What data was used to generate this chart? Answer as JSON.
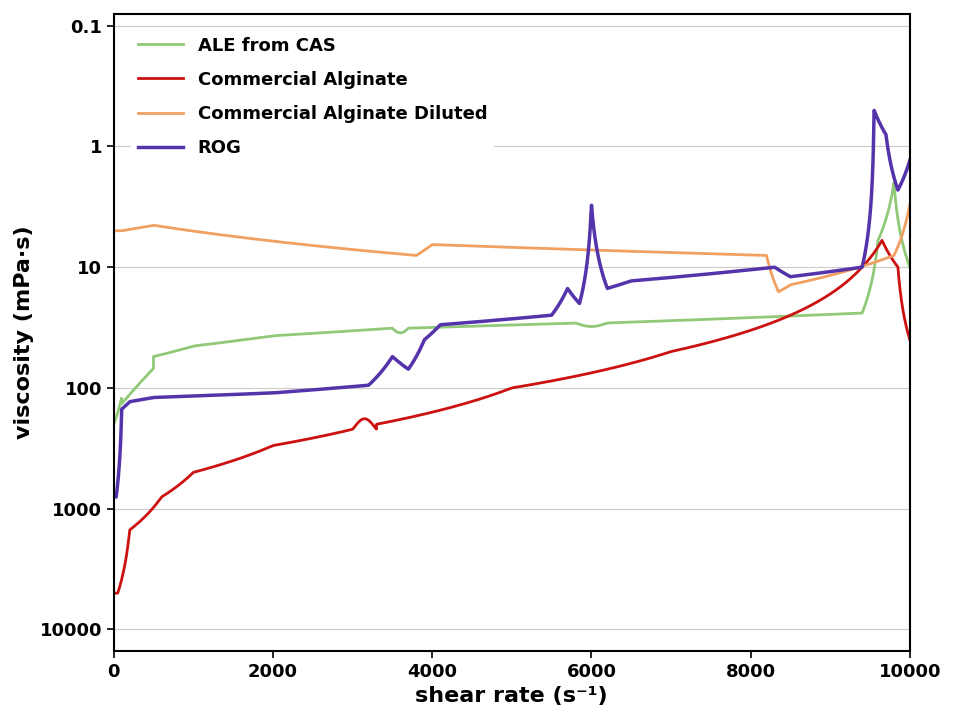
{
  "title": "",
  "xlabel": "shear rate (s⁻¹)",
  "ylabel": "viscosity (mPa·s)",
  "xlim": [
    0,
    10000
  ],
  "ylim_log": [
    0.08,
    15000
  ],
  "legend": [
    {
      "label": "ALE from CAS",
      "color": "#90c978",
      "lw": 2.0
    },
    {
      "label": "Commercial Alginate",
      "color": "#cc1111",
      "lw": 2.0
    },
    {
      "label": "Commercial Alginate Diluted",
      "color": "#f0a060",
      "lw": 2.0
    },
    {
      "label": "ROG",
      "color": "#5533aa",
      "lw": 2.5
    }
  ],
  "yticks": [
    0.1,
    1,
    10,
    100,
    1000,
    10000
  ],
  "ytick_labels": [
    "0.1",
    "1",
    "10",
    "100",
    "1000",
    "10000"
  ],
  "xticks": [
    0,
    2000,
    4000,
    6000,
    8000,
    10000
  ],
  "background_color": "#ffffff",
  "grid_color": "#cccccc"
}
